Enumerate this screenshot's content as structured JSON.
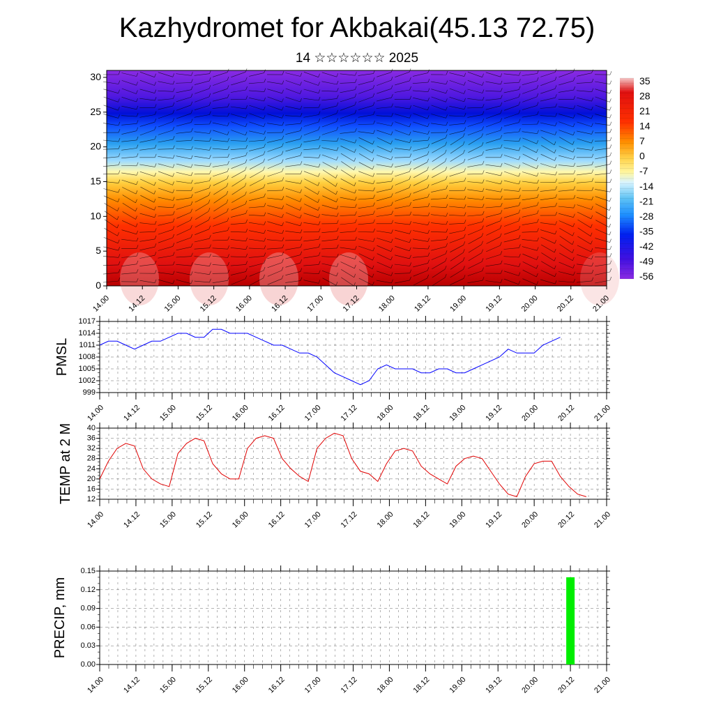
{
  "title": "Kazhydromet for Akbakai(45.13 72.75)",
  "subtitle": "14 ☆☆☆☆☆☆ 2025",
  "time_labels": [
    "14.00",
    "14.12",
    "15.00",
    "15.12",
    "16.00",
    "16.12",
    "17.00",
    "17.12",
    "18.00",
    "18.12",
    "19.00",
    "19.12",
    "20.00",
    "20.12",
    "21.00"
  ],
  "chart_data": [
    {
      "type": "heatmap",
      "name": "cross-section",
      "ylabel": "",
      "yticks": [
        "0",
        "5",
        "10",
        "15",
        "20",
        "25",
        "30"
      ],
      "ylim": [
        0,
        31
      ],
      "colorbar": {
        "labels": [
          "35",
          "28",
          "21",
          "14",
          "7",
          "0",
          "-7",
          "-14",
          "-21",
          "-28",
          "-35",
          "-42",
          "-49",
          "-56"
        ],
        "colors": [
          "#f4c4c4",
          "#e01010",
          "#ff6a00",
          "#ffb000",
          "#ffe26a",
          "#ffffc0",
          "#9fe0ff",
          "#33a8e8",
          "#1060ff",
          "#0010e0",
          "#6a1ae0",
          "#8a2be2"
        ]
      },
      "wind_barbs": true
    },
    {
      "type": "line",
      "name": "pmsl",
      "ylabel": "PMSL",
      "ylim": [
        999,
        1017
      ],
      "yticks": [
        "999",
        "1002",
        "1005",
        "1008",
        "1011",
        "1014",
        "1017"
      ],
      "color": "#0000ff",
      "values": [
        1011,
        1012,
        1012,
        1011,
        1010,
        1011,
        1012,
        1012,
        1013,
        1014,
        1014,
        1013,
        1013,
        1015,
        1015,
        1014,
        1014,
        1014,
        1013,
        1012,
        1011,
        1011,
        1010,
        1009,
        1009,
        1008,
        1006,
        1004,
        1003,
        1002,
        1001,
        1002,
        1005,
        1006,
        1005,
        1005,
        1005,
        1004,
        1004,
        1005,
        1005,
        1004,
        1004,
        1005,
        1006,
        1007,
        1008,
        1010,
        1009,
        1009,
        1009,
        1011,
        1012,
        1013
      ]
    },
    {
      "type": "line",
      "name": "temp2m",
      "ylabel": "TEMP at 2 M",
      "ylim": [
        12,
        40
      ],
      "yticks": [
        "12",
        "16",
        "20",
        "24",
        "28",
        "32",
        "36",
        "40"
      ],
      "color": "#e00000",
      "values": [
        20,
        27,
        32,
        34,
        33,
        24,
        20,
        18,
        17,
        30,
        34,
        36,
        35,
        26,
        22,
        20,
        20,
        32,
        36,
        37,
        36,
        28,
        24,
        21,
        19,
        32,
        36,
        38,
        37,
        28,
        23,
        22,
        19,
        26,
        31,
        32,
        31,
        25,
        22,
        20,
        18,
        25,
        28,
        29,
        28,
        23,
        18,
        14,
        13,
        21,
        26,
        27,
        27,
        21,
        17,
        14,
        13
      ]
    },
    {
      "type": "bar",
      "name": "precip",
      "ylabel": "PRECIP, mm",
      "ylim": [
        0,
        0.15
      ],
      "yticks": [
        "0.00",
        "0.03",
        "0.06",
        "0.09",
        "0.12",
        "0.15"
      ],
      "color": "#00ee00",
      "bars": [
        {
          "time": 20.5,
          "value": 0.14
        }
      ]
    }
  ]
}
